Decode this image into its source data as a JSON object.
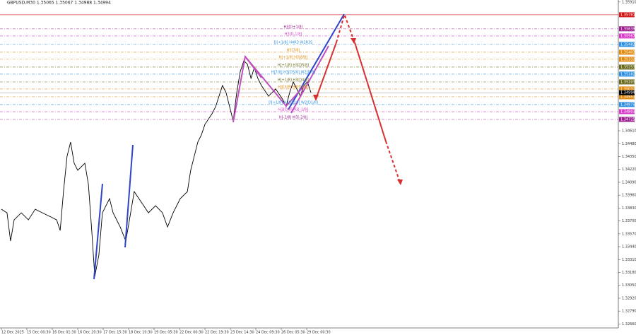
{
  "chart_data": {
    "type": "line",
    "title": "GBPUSD,M30  1.35065 1.35067 1.34988 1.34994",
    "xlim": [
      0,
      24.25
    ],
    "xticks": [
      {
        "value": 0,
        "label": "12 Dec 2025"
      },
      {
        "value": 1,
        "label": "15 Dec 00:30"
      },
      {
        "value": 2,
        "label": "16 Dec 01:30"
      },
      {
        "value": 3,
        "label": "16 Dec 20:30"
      },
      {
        "value": 4,
        "label": "17 Dec 15:30"
      },
      {
        "value": 5,
        "label": "18 Dec 10:30"
      },
      {
        "value": 6,
        "label": "19 Dec 05:30"
      },
      {
        "value": 7,
        "label": "22 Dec 00:30"
      },
      {
        "value": 8,
        "label": "22 Dec 19:30"
      },
      {
        "value": 9,
        "label": "23 Dec 14:30"
      },
      {
        "value": 10,
        "label": "24 Dec 09:30"
      },
      {
        "value": 11,
        "label": "26 Dec 05:30"
      },
      {
        "value": 12,
        "label": "29 Dec 00:30"
      }
    ],
    "ylim": [
      1.3262,
      1.3593
    ],
    "yticks": [
      {
        "value": 1.3591,
        "label": "1.35910"
      },
      {
        "value": 1.3461,
        "label": "1.34610"
      },
      {
        "value": 1.3448,
        "label": "1.34480"
      },
      {
        "value": 1.3435,
        "label": "1.34350"
      },
      {
        "value": 1.3422,
        "label": "1.34220"
      },
      {
        "value": 1.3409,
        "label": "1.34090"
      },
      {
        "value": 1.3396,
        "label": "1.33960"
      },
      {
        "value": 1.3383,
        "label": "1.33830"
      },
      {
        "value": 1.337,
        "label": "1.33700"
      },
      {
        "value": 1.3357,
        "label": "1.33570"
      },
      {
        "value": 1.3344,
        "label": "1.33440"
      },
      {
        "value": 1.3331,
        "label": "1.33310"
      },
      {
        "value": 1.3318,
        "label": "1.33180"
      },
      {
        "value": 1.3305,
        "label": "1.33050"
      },
      {
        "value": 1.3292,
        "label": "1.32920"
      },
      {
        "value": 1.3279,
        "label": "1.32790"
      },
      {
        "value": 1.3266,
        "label": "1.32660"
      }
    ],
    "series": [
      {
        "color": "#000000",
        "x": [
          0,
          0.22,
          0.36,
          0.5,
          0.78,
          1.06,
          1.33,
          1.61,
          1.89,
          2.17,
          2.31,
          2.44,
          2.58,
          2.72,
          2.86,
          3,
          3.28,
          3.42,
          3.56,
          3.67,
          3.83,
          3.97,
          4.11,
          4.25,
          4.39,
          4.67,
          4.89,
          5.08,
          5.22,
          5.5,
          5.78,
          6.06,
          6.33,
          6.53,
          6.75,
          7.03,
          7.31,
          7.44,
          7.58,
          7.72,
          7.86,
          8,
          8.28,
          8.42,
          8.69,
          8.83,
          8.97,
          9.11,
          9.25,
          9.39,
          9.53,
          9.67,
          9.81,
          9.94,
          10.08,
          10.22,
          10.5,
          10.78,
          11.06,
          11.19,
          11.33,
          11.47,
          11.61,
          11.75,
          11.89,
          12.03,
          12.17
        ],
        "values": [
          1.33818,
          1.33782,
          1.33497,
          1.33711,
          1.33782,
          1.33711,
          1.33818,
          1.33782,
          1.33747,
          1.33711,
          1.33604,
          1.33996,
          1.34353,
          1.34496,
          1.34282,
          1.34211,
          1.34282,
          1.34068,
          1.33568,
          1.3314,
          1.33354,
          1.33782,
          1.33854,
          1.33925,
          1.33782,
          1.33639,
          1.33497,
          1.33782,
          1.33996,
          1.33889,
          1.33782,
          1.33854,
          1.33782,
          1.33639,
          1.33782,
          1.33925,
          1.33996,
          1.34211,
          1.34353,
          1.34496,
          1.34568,
          1.34675,
          1.34782,
          1.34853,
          1.35067,
          1.34996,
          1.34853,
          1.3471,
          1.34996,
          1.3521,
          1.35317,
          1.35282,
          1.35139,
          1.35246,
          1.35139,
          1.35067,
          1.3496,
          1.35032,
          1.34925,
          1.34853,
          1.34996,
          1.35103,
          1.35032,
          1.3496,
          1.35067,
          1.35103,
          1.34994
        ]
      }
    ],
    "current_price": 1.34994,
    "levels": [
      {
        "price": 1.35781,
        "color": "#d01818"
      },
      {
        "price": 1.35639,
        "color": "#9b1f8f",
        "label": "H3[D+1/8]"
      },
      {
        "price": 1.35567,
        "color": "#d63cc8",
        "label": "H3[D-1/8]"
      },
      {
        "price": 1.35482,
        "color": "#2f8fe0",
        "label": "D[+1/8] H4R3 W2R3S"
      },
      {
        "price": 1.35403,
        "color": "#e08a10",
        "label": "H3[7/8]"
      },
      {
        "price": 1.35332,
        "color": "#e08a10",
        "label": "H[+1/8] H3[8/8]"
      },
      {
        "price": 1.35253,
        "color": "#6b6b1e",
        "label": "H[+1/8] H3[D5/8]"
      },
      {
        "price": 1.35182,
        "color": "#2f8fe0",
        "label": "H[7/8] H3[D5/8] W2[D/8]"
      },
      {
        "price": 1.35103,
        "color": "#6b6b1e",
        "label": "H[+1/8] H3[D4/8]"
      },
      {
        "price": 1.35032,
        "color": "#e08a10",
        "label": "H3[3/8] H3[D3/8]"
      },
      {
        "price": 1.34953,
        "color": "#e08a10"
      },
      {
        "price": 1.34875,
        "color": "#2f8fe0",
        "label": "D[+1/8] H3[D2/8] W2[D1/8]"
      },
      {
        "price": 1.34803,
        "color": "#d63cc8",
        "label": "H3[D/8] H3[-1/8]"
      },
      {
        "price": 1.34725,
        "color": "#9b1f8f",
        "label": "H[-2/8] M3[-2/8]"
      }
    ]
  }
}
